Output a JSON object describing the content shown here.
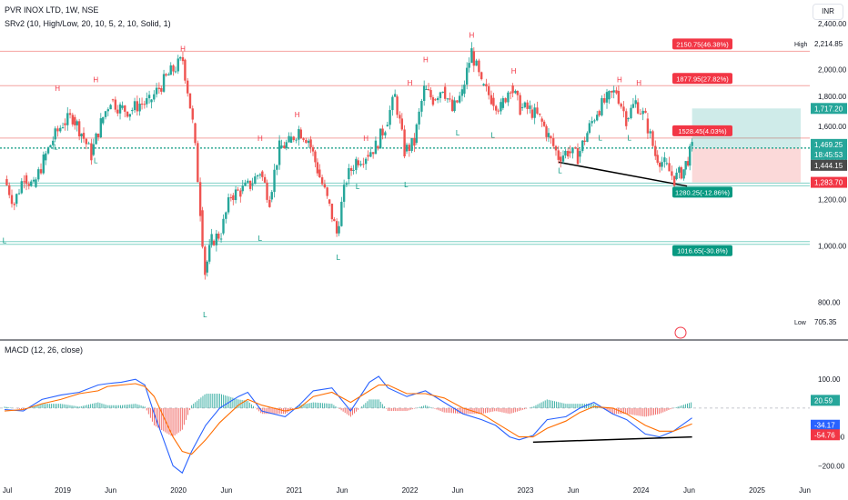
{
  "header": {
    "title": "PVR INOX LTD, 1W, NSE",
    "indicator": "SRv2 (10, High/Low, 20, 10, 5, 2, 10, Solid, 1)",
    "currency": "INR"
  },
  "macd_label": "MACD (12, 26, close)",
  "colors": {
    "up": "#26a69a",
    "down": "#ef5350",
    "macd": "#2962ff",
    "signal": "#ff6d00",
    "target": "#f23645",
    "stop": "#089981"
  },
  "chart_data": [
    {
      "type": "candlestick",
      "title": "PVR INOX LTD, 1W, NSE",
      "ylim": [
        700,
        2450
      ],
      "y_ticks": [
        800,
        1000,
        1200,
        1400,
        1600,
        1800,
        2000,
        2200,
        2400
      ],
      "x_ticks": [
        "Jul",
        "2019",
        "Jun",
        "2020",
        "Jun",
        "2021",
        "Jun",
        "2022",
        "Jun",
        "2023",
        "Jun",
        "2024",
        "Jun",
        "2025",
        "Jun"
      ],
      "price_labels": {
        "high": {
          "label": "High",
          "value": "2,214.85"
        },
        "low": {
          "label": "Low",
          "value": "705.35"
        },
        "target_box": "1,717.20",
        "last": "1,469.25",
        "countdown": "18:45:53",
        "ma": "1,444.15",
        "stop": "1,283.70"
      },
      "resistance_levels": [
        2150.75,
        1877.95,
        1528.45
      ],
      "support_levels": [
        1280.25,
        1016.65
      ],
      "level_labels": [
        "2150.75(46.38%)",
        "1877.95(27.82%)",
        "1528.45(4.03%)",
        "1280.25(-12.86%)",
        "1016.65(-30.8%)"
      ],
      "pivot_markers": [
        {
          "t": "H",
          "date": "2018-12-15",
          "price": 1840
        },
        {
          "t": "H",
          "date": "2019-04-15",
          "price": 1905
        },
        {
          "t": "H",
          "date": "2020-01-15",
          "price": 2150
        },
        {
          "t": "H",
          "date": "2021-01-10",
          "price": 1660
        },
        {
          "t": "H",
          "date": "2020-09-15",
          "price": 1510
        },
        {
          "t": "H",
          "date": "2021-08-15",
          "price": 1510
        },
        {
          "t": "H",
          "date": "2022-01-01",
          "price": 1880
        },
        {
          "t": "H",
          "date": "2022-02-20",
          "price": 2060
        },
        {
          "t": "H",
          "date": "2022-07-15",
          "price": 2270
        },
        {
          "t": "H",
          "date": "2022-11-25",
          "price": 1970
        },
        {
          "t": "H",
          "date": "2023-10-25",
          "price": 1905
        },
        {
          "t": "H",
          "date": "2023-12-25",
          "price": 1880
        },
        {
          "t": "L",
          "date": "2018-07-01",
          "price": 1010
        },
        {
          "t": "L",
          "date": "2018-12-10",
          "price": 1460
        },
        {
          "t": "L",
          "date": "2019-04-15",
          "price": 1385
        },
        {
          "t": "L",
          "date": "2020-03-25",
          "price": 755
        },
        {
          "t": "L",
          "date": "2020-09-15",
          "price": 1020
        },
        {
          "t": "L",
          "date": "2021-05-20",
          "price": 945
        },
        {
          "t": "L",
          "date": "2021-07-20",
          "price": 1250
        },
        {
          "t": "L",
          "date": "2021-12-20",
          "price": 1260
        },
        {
          "t": "L",
          "date": "2022-06-01",
          "price": 1545
        },
        {
          "t": "L",
          "date": "2022-09-20",
          "price": 1530
        },
        {
          "t": "L",
          "date": "2023-04-20",
          "price": 1330
        },
        {
          "t": "L",
          "date": "2023-08-25",
          "price": 1515
        },
        {
          "t": "L",
          "date": "2023-11-25",
          "price": 1515
        },
        {
          "t": "L",
          "date": "2024-04-25",
          "price": 1225
        }
      ],
      "close_path": [
        [
          "2018-07-01",
          1300
        ],
        [
          "2018-08-01",
          1180
        ],
        [
          "2018-09-01",
          1320
        ],
        [
          "2018-10-01",
          1260
        ],
        [
          "2018-11-01",
          1400
        ],
        [
          "2018-12-01",
          1520
        ],
        [
          "2019-01-01",
          1620
        ],
        [
          "2019-02-01",
          1660
        ],
        [
          "2019-03-01",
          1560
        ],
        [
          "2019-04-01",
          1430
        ],
        [
          "2019-05-01",
          1620
        ],
        [
          "2019-06-01",
          1780
        ],
        [
          "2019-07-01",
          1720
        ],
        [
          "2019-08-01",
          1700
        ],
        [
          "2019-09-01",
          1750
        ],
        [
          "2019-10-01",
          1760
        ],
        [
          "2019-11-01",
          1860
        ],
        [
          "2019-12-01",
          1960
        ],
        [
          "2020-01-15",
          2080
        ],
        [
          "2020-02-15",
          1620
        ],
        [
          "2020-03-10",
          1150
        ],
        [
          "2020-03-25",
          900
        ],
        [
          "2020-04-15",
          1020
        ],
        [
          "2020-05-15",
          1050
        ],
        [
          "2020-06-15",
          1220
        ],
        [
          "2020-07-15",
          1240
        ],
        [
          "2020-08-15",
          1270
        ],
        [
          "2020-09-15",
          1340
        ],
        [
          "2020-10-15",
          1200
        ],
        [
          "2020-11-15",
          1470
        ],
        [
          "2020-12-15",
          1500
        ],
        [
          "2021-01-15",
          1580
        ],
        [
          "2021-02-15",
          1520
        ],
        [
          "2021-03-15",
          1350
        ],
        [
          "2021-04-15",
          1200
        ],
        [
          "2021-05-15",
          1050
        ],
        [
          "2021-06-15",
          1300
        ],
        [
          "2021-07-15",
          1400
        ],
        [
          "2021-08-15",
          1430
        ],
        [
          "2021-09-15",
          1480
        ],
        [
          "2021-10-15",
          1600
        ],
        [
          "2021-11-15",
          1800
        ],
        [
          "2021-12-15",
          1450
        ],
        [
          "2022-01-15",
          1500
        ],
        [
          "2022-02-15",
          1850
        ],
        [
          "2022-03-15",
          1780
        ],
        [
          "2022-04-15",
          1870
        ],
        [
          "2022-05-15",
          1700
        ],
        [
          "2022-06-15",
          1820
        ],
        [
          "2022-07-15",
          2150
        ],
        [
          "2022-08-15",
          1880
        ],
        [
          "2022-09-15",
          1790
        ],
        [
          "2022-10-15",
          1720
        ],
        [
          "2022-11-15",
          1880
        ],
        [
          "2022-12-15",
          1720
        ],
        [
          "2023-01-15",
          1710
        ],
        [
          "2023-02-15",
          1650
        ],
        [
          "2023-03-15",
          1540
        ],
        [
          "2023-04-15",
          1420
        ],
        [
          "2023-05-15",
          1450
        ],
        [
          "2023-06-15",
          1420
        ],
        [
          "2023-07-15",
          1560
        ],
        [
          "2023-08-15",
          1700
        ],
        [
          "2023-09-15",
          1780
        ],
        [
          "2023-10-15",
          1840
        ],
        [
          "2023-11-15",
          1650
        ],
        [
          "2023-12-15",
          1760
        ],
        [
          "2024-01-15",
          1650
        ],
        [
          "2024-02-15",
          1430
        ],
        [
          "2024-03-15",
          1380
        ],
        [
          "2024-04-15",
          1300
        ],
        [
          "2024-05-15",
          1350
        ],
        [
          "2024-06-10",
          1469
        ]
      ]
    },
    {
      "type": "line",
      "title": "MACD (12, 26, close)",
      "ylim": [
        -240,
        170
      ],
      "y_ticks": [
        100,
        -100,
        -200
      ],
      "y_tick_labels": [
        "100.00",
        "−100.00",
        "−200.00"
      ],
      "values": {
        "histogram": "20.59",
        "macd": "-34.17",
        "signal": "-54.76"
      },
      "series": [
        {
          "name": "MACD",
          "points": [
            [
              0,
              -5
            ],
            [
              0.04,
              -10
            ],
            [
              0.08,
              30
            ],
            [
              0.12,
              45
            ],
            [
              0.16,
              55
            ],
            [
              0.2,
              80
            ],
            [
              0.22,
              85
            ],
            [
              0.25,
              90
            ],
            [
              0.28,
              100
            ],
            [
              0.3,
              80
            ],
            [
              0.32,
              -20
            ],
            [
              0.36,
              -200
            ],
            [
              0.38,
              -225
            ],
            [
              0.4,
              -150
            ],
            [
              0.43,
              -60
            ],
            [
              0.46,
              0
            ],
            [
              0.5,
              40
            ],
            [
              0.52,
              55
            ],
            [
              0.55,
              -10
            ],
            [
              0.6,
              -30
            ],
            [
              0.63,
              10
            ],
            [
              0.66,
              60
            ],
            [
              0.7,
              70
            ],
            [
              0.74,
              -10
            ],
            [
              0.78,
              90
            ],
            [
              0.8,
              110
            ],
            [
              0.82,
              70
            ],
            [
              0.86,
              40
            ],
            [
              0.9,
              60
            ],
            [
              0.94,
              20
            ],
            [
              0.98,
              -20
            ],
            [
              1.02,
              -40
            ],
            [
              1.05,
              -60
            ],
            [
              1.08,
              -100
            ],
            [
              1.1,
              -110
            ],
            [
              1.13,
              -95
            ],
            [
              1.16,
              -40
            ],
            [
              1.2,
              -30
            ],
            [
              1.23,
              0
            ],
            [
              1.26,
              20
            ],
            [
              1.3,
              -20
            ],
            [
              1.33,
              -40
            ],
            [
              1.37,
              -90
            ],
            [
              1.4,
              -100
            ],
            [
              1.43,
              -80
            ],
            [
              1.47,
              -34
            ]
          ]
        },
        {
          "name": "Signal",
          "points": [
            [
              0,
              -10
            ],
            [
              0.04,
              -5
            ],
            [
              0.08,
              15
            ],
            [
              0.12,
              30
            ],
            [
              0.16,
              50
            ],
            [
              0.2,
              60
            ],
            [
              0.22,
              75
            ],
            [
              0.25,
              80
            ],
            [
              0.28,
              85
            ],
            [
              0.3,
              75
            ],
            [
              0.32,
              40
            ],
            [
              0.36,
              -100
            ],
            [
              0.38,
              -150
            ],
            [
              0.4,
              -160
            ],
            [
              0.43,
              -110
            ],
            [
              0.46,
              -50
            ],
            [
              0.5,
              10
            ],
            [
              0.52,
              30
            ],
            [
              0.55,
              10
            ],
            [
              0.6,
              -10
            ],
            [
              0.63,
              0
            ],
            [
              0.66,
              40
            ],
            [
              0.7,
              55
            ],
            [
              0.74,
              20
            ],
            [
              0.78,
              60
            ],
            [
              0.8,
              80
            ],
            [
              0.82,
              80
            ],
            [
              0.86,
              50
            ],
            [
              0.9,
              50
            ],
            [
              0.94,
              35
            ],
            [
              0.98,
              0
            ],
            [
              1.02,
              -20
            ],
            [
              1.05,
              -50
            ],
            [
              1.08,
              -80
            ],
            [
              1.1,
              -100
            ],
            [
              1.13,
              -100
            ],
            [
              1.16,
              -70
            ],
            [
              1.2,
              -45
            ],
            [
              1.23,
              -15
            ],
            [
              1.26,
              5
            ],
            [
              1.3,
              0
            ],
            [
              1.33,
              -20
            ],
            [
              1.37,
              -60
            ],
            [
              1.4,
              -80
            ],
            [
              1.43,
              -80
            ],
            [
              1.47,
              -55
            ]
          ]
        }
      ]
    }
  ]
}
